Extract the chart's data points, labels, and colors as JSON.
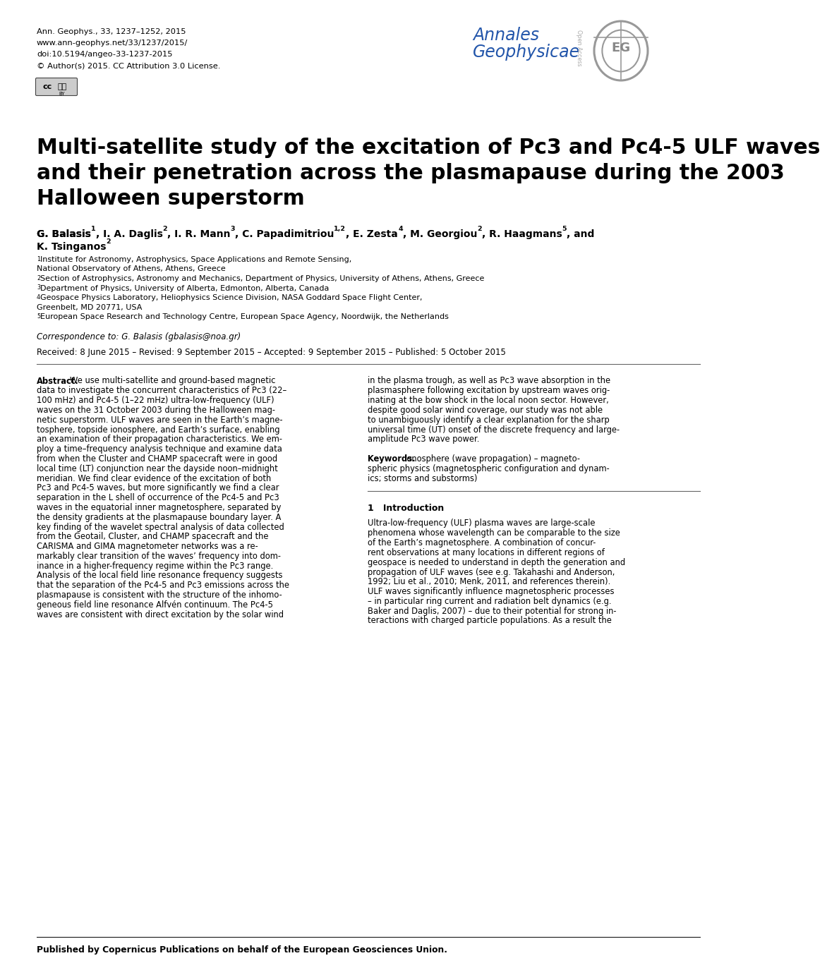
{
  "background_color": "#ffffff",
  "header_left_lines": [
    "Ann. Geophys., 33, 1237–1252, 2015",
    "www.ann-geophys.net/33/1237/2015/",
    "doi:10.5194/angeo-33-1237-2015",
    "© Author(s) 2015. CC Attribution 3.0 License."
  ],
  "journal_name_line1": "Annales",
  "journal_name_line2": "Geophysicae",
  "journal_name_color": "#2255aa",
  "open_access_color": "#aaaaaa",
  "title_line1": "Multi-satellite study of the excitation of Pc3 and Pc4-5 ULF waves",
  "title_line2": "and their penetration across the plasmapause during the 2003",
  "title_line3": "Halloween superstorm",
  "correspondence": "Correspondence to: G. Balasis (gbalasis@noa.gr)",
  "received_line": "Received: 8 June 2015 – Revised: 9 September 2015 – Accepted: 9 September 2015 – Published: 5 October 2015",
  "footer_text": "Published by Copernicus Publications on behalf of the European Geosciences Union.",
  "left_col_abstract": [
    "data to investigate the concurrent characteristics of Pc3 (22–",
    "100 mHz) and Pc4-5 (1–22 mHz) ultra-low-frequency (ULF)",
    "waves on the 31 October 2003 during the Halloween mag-",
    "netic superstorm. ULF waves are seen in the Earth’s magne-",
    "tosphere, topside ionosphere, and Earth’s surface, enabling",
    "an examination of their propagation characteristics. We em-",
    "ploy a time–frequency analysis technique and examine data",
    "from when the Cluster and CHAMP spacecraft were in good",
    "local time (LT) conjunction near the dayside noon–midnight",
    "meridian. We find clear evidence of the excitation of both",
    "Pc3 and Pc4-5 waves, but more significantly we find a clear",
    "separation in the L shell of occurrence of the Pc4-5 and Pc3",
    "waves in the equatorial inner magnetosphere, separated by",
    "the density gradients at the plasmapause boundary layer. A",
    "key finding of the wavelet spectral analysis of data collected",
    "from the Geotail, Cluster, and CHAMP spacecraft and the",
    "CARISMA and GIMA magnetometer networks was a re-",
    "markably clear transition of the waves’ frequency into dom-",
    "inance in a higher-frequency regime within the Pc3 range.",
    "Analysis of the local field line resonance frequency suggests",
    "that the separation of the Pc4-5 and Pc3 emissions across the",
    "plasmapause is consistent with the structure of the inhomo-",
    "geneous field line resonance Alfvén continuum. The Pc4-5",
    "waves are consistent with direct excitation by the solar wind"
  ],
  "right_col_abstract": [
    "in the plasma trough, as well as Pc3 wave absorption in the",
    "plasmasphere following excitation by upstream waves orig-",
    "inating at the bow shock in the local noon sector. However,",
    "despite good solar wind coverage, our study was not able",
    "to unambiguously identify a clear explanation for the sharp",
    "universal time (UT) onset of the discrete frequency and large-",
    "amplitude Pc3 wave power."
  ],
  "keywords_line1": "Ionosphere (wave propagation) – magneto-",
  "keywords_line2": "spheric physics (magnetospheric configuration and dynam-",
  "keywords_line3": "ics; storms and substorms)",
  "intro_lines": [
    "Ultra-low-frequency (ULF) plasma waves are large-scale",
    "phenomena whose wavelength can be comparable to the size",
    "of the Earth’s magnetosphere. A combination of concur-",
    "rent observations at many locations in different regions of",
    "geospace is needed to understand in depth the generation and",
    "propagation of ULF waves (see e.g. Takahashi and Anderson,",
    "1992; Liu et al., 2010; Menk, 2011, and references therein).",
    "ULF waves significantly influence magnetospheric processes",
    "– in particular ring current and radiation belt dynamics (e.g.",
    "Baker and Daglis, 2007) – due to their potential for strong in-",
    "teractions with charged particle populations. As a result the"
  ]
}
